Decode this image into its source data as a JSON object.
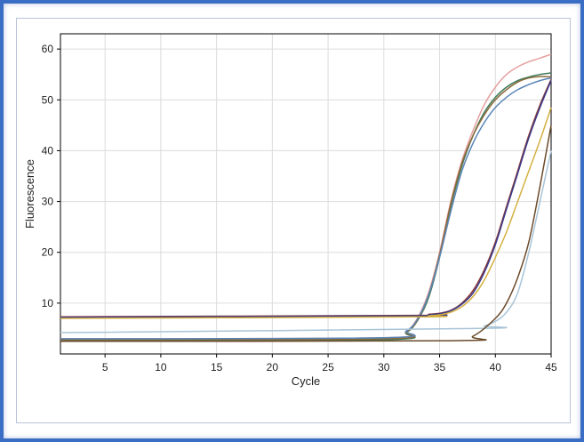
{
  "chart_data": {
    "type": "line",
    "title": "",
    "xlabel": "Cycle",
    "ylabel": "Fluorescence",
    "xlim": [
      1,
      45
    ],
    "ylim": [
      0,
      63
    ],
    "x_ticks": [
      5,
      10,
      15,
      20,
      25,
      30,
      35,
      40,
      45
    ],
    "y_ticks": [
      10,
      20,
      30,
      40,
      50,
      60
    ],
    "grid": true,
    "series": [
      {
        "color": "#e6a0a0",
        "baseline": 3.0,
        "points": [
          [
            1,
            3.0
          ],
          [
            30,
            3.2
          ],
          [
            32,
            4.5
          ],
          [
            33,
            7
          ],
          [
            34,
            12
          ],
          [
            35,
            20
          ],
          [
            36,
            30
          ],
          [
            37,
            38
          ],
          [
            38,
            44
          ],
          [
            39,
            49
          ],
          [
            40,
            52.5
          ],
          [
            41,
            55
          ],
          [
            42,
            56.5
          ],
          [
            43,
            57.5
          ],
          [
            44,
            58.2
          ],
          [
            45,
            59
          ]
        ]
      },
      {
        "color": "#3e7a5a",
        "baseline": 2.6,
        "points": [
          [
            1,
            2.6
          ],
          [
            30,
            2.8
          ],
          [
            32,
            4.2
          ],
          [
            33,
            6.5
          ],
          [
            34,
            11
          ],
          [
            35,
            19
          ],
          [
            36,
            29
          ],
          [
            37,
            37
          ],
          [
            38,
            43
          ],
          [
            39,
            47.5
          ],
          [
            40,
            50.5
          ],
          [
            41,
            52.5
          ],
          [
            42,
            53.8
          ],
          [
            43,
            54.5
          ],
          [
            44,
            55
          ],
          [
            45,
            55.3
          ]
        ]
      },
      {
        "color": "#8a6a3a",
        "baseline": 2.8,
        "points": [
          [
            1,
            2.8
          ],
          [
            30,
            3.0
          ],
          [
            32,
            4.3
          ],
          [
            33,
            6.6
          ],
          [
            34,
            11.5
          ],
          [
            35,
            19.5
          ],
          [
            36,
            29.5
          ],
          [
            37,
            37.5
          ],
          [
            38,
            43
          ],
          [
            39,
            47
          ],
          [
            40,
            50
          ],
          [
            41,
            52
          ],
          [
            42,
            53.5
          ],
          [
            43,
            54.3
          ],
          [
            44,
            54.6
          ],
          [
            45,
            54.5
          ]
        ]
      },
      {
        "color": "#5a86b8",
        "baseline": 3.0,
        "points": [
          [
            1,
            3.0
          ],
          [
            30,
            3.2
          ],
          [
            32,
            4.5
          ],
          [
            33,
            6.8
          ],
          [
            34,
            11.5
          ],
          [
            35,
            19
          ],
          [
            36,
            28
          ],
          [
            37,
            36
          ],
          [
            38,
            41.5
          ],
          [
            39,
            45.5
          ],
          [
            40,
            48.5
          ],
          [
            41,
            50.5
          ],
          [
            42,
            52
          ],
          [
            43,
            53
          ],
          [
            44,
            53.8
          ],
          [
            45,
            54.3
          ]
        ]
      },
      {
        "color": "#8a3a3a",
        "baseline": 7.3,
        "points": [
          [
            1,
            7.3
          ],
          [
            33,
            7.6
          ],
          [
            34,
            7.8
          ],
          [
            35,
            8.0
          ],
          [
            36,
            8.6
          ],
          [
            37,
            10
          ],
          [
            38,
            12.5
          ],
          [
            39,
            16.5
          ],
          [
            40,
            22
          ],
          [
            41,
            29
          ],
          [
            42,
            36
          ],
          [
            43,
            43
          ],
          [
            44,
            49
          ],
          [
            45,
            54
          ]
        ]
      },
      {
        "color": "#3a3a8a",
        "baseline": 7.2,
        "points": [
          [
            1,
            7.2
          ],
          [
            33,
            7.5
          ],
          [
            34,
            7.7
          ],
          [
            35,
            7.9
          ],
          [
            36,
            8.5
          ],
          [
            37,
            9.8
          ],
          [
            38,
            12
          ],
          [
            39,
            16
          ],
          [
            40,
            21.5
          ],
          [
            41,
            28.5
          ],
          [
            42,
            35.5
          ],
          [
            43,
            42.5
          ],
          [
            44,
            48.5
          ],
          [
            45,
            53.8
          ]
        ]
      },
      {
        "color": "#d4b040",
        "baseline": 7.0,
        "points": [
          [
            1,
            7.0
          ],
          [
            33,
            7.3
          ],
          [
            34,
            7.5
          ],
          [
            35,
            7.7
          ],
          [
            36,
            8.2
          ],
          [
            37,
            9.3
          ],
          [
            38,
            11.3
          ],
          [
            39,
            14.5
          ],
          [
            40,
            19
          ],
          [
            41,
            24
          ],
          [
            42,
            30
          ],
          [
            43,
            36
          ],
          [
            44,
            42
          ],
          [
            45,
            48.5
          ]
        ]
      },
      {
        "color": "#a8c4d8",
        "baseline": 4.2,
        "points": [
          [
            1,
            4.2
          ],
          [
            38,
            5.0
          ],
          [
            39,
            5.5
          ],
          [
            40,
            6.4
          ],
          [
            41,
            8.2
          ],
          [
            42,
            12
          ],
          [
            43,
            20
          ],
          [
            44,
            30
          ],
          [
            45,
            40
          ]
        ]
      },
      {
        "color": "#6b4a2a",
        "baseline": 2.5,
        "points": [
          [
            1,
            2.5
          ],
          [
            36,
            2.6
          ],
          [
            38,
            3.5
          ],
          [
            40,
            7
          ],
          [
            41,
            10
          ],
          [
            42,
            15
          ],
          [
            43,
            22
          ],
          [
            44,
            33
          ],
          [
            45,
            45
          ]
        ]
      }
    ]
  }
}
